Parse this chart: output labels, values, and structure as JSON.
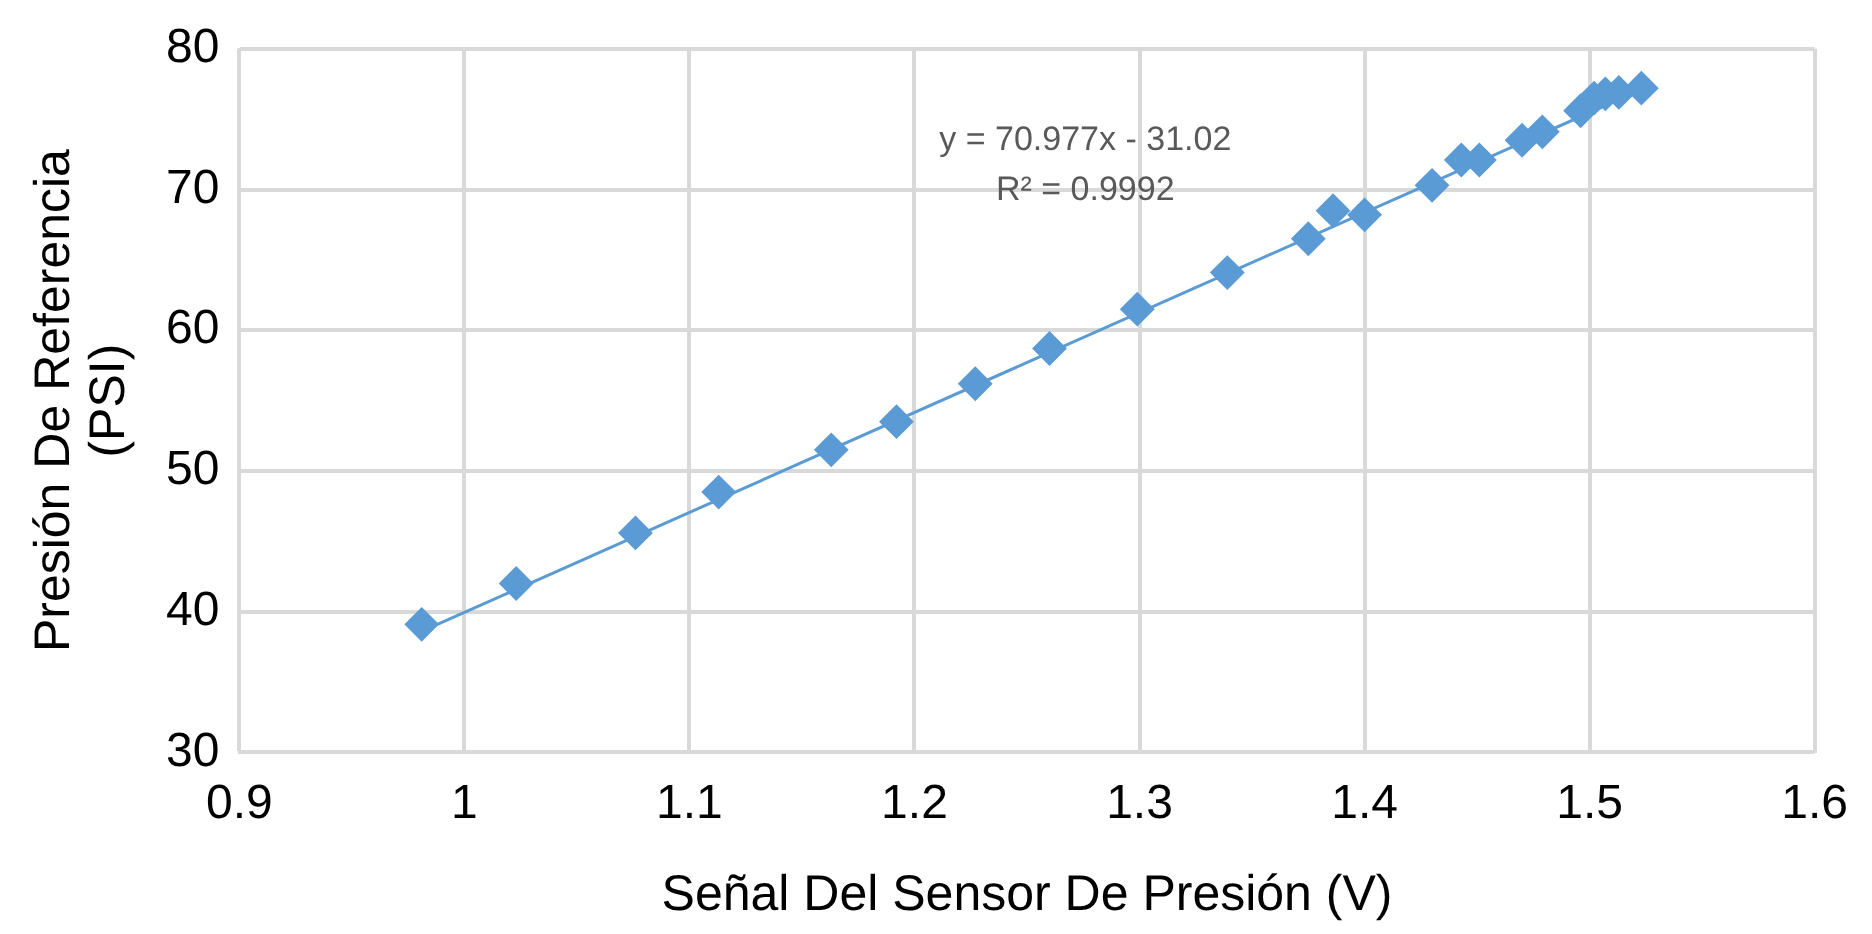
{
  "chart_data": {
    "type": "scatter",
    "xlabel": "Señal Del Sensor De Presión (V)",
    "ylabel": "Presión De Referencia\n(PSI)",
    "xlim": [
      0.9,
      1.6
    ],
    "xticks": [
      0.9,
      1,
      1.1,
      1.2,
      1.3,
      1.4,
      1.5,
      1.6
    ],
    "ylim": [
      30,
      80
    ],
    "yticks": [
      30,
      40,
      50,
      60,
      70,
      80
    ],
    "grid": true,
    "marker": "diamond",
    "annotations": [
      "y = 70.977x - 31.02",
      "R² = 0.9992"
    ],
    "series": [
      {
        "type": "scatter",
        "color": "#5b9bd5",
        "x": [
          0.981,
          1.023,
          1.076,
          1.113,
          1.163,
          1.192,
          1.227,
          1.26,
          1.299,
          1.339,
          1.375,
          1.386,
          1.4,
          1.43,
          1.443,
          1.451,
          1.47,
          1.479,
          1.496,
          1.502,
          1.507,
          1.513,
          1.519,
          1.523
        ],
        "values": [
          39.1,
          42.0,
          45.6,
          48.5,
          51.5,
          53.5,
          56.2,
          58.7,
          61.5,
          64.1,
          66.5,
          68.5,
          68.2,
          70.3,
          72.1,
          72.1,
          73.5,
          74.1,
          75.6,
          76.5,
          76.8,
          76.9,
          null,
          77.2
        ]
      },
      {
        "type": "line",
        "color": "#5b9bd5",
        "x": [
          0.981,
          1.523
        ],
        "values": [
          38.6,
          77.1
        ],
        "marker": "none"
      }
    ]
  }
}
